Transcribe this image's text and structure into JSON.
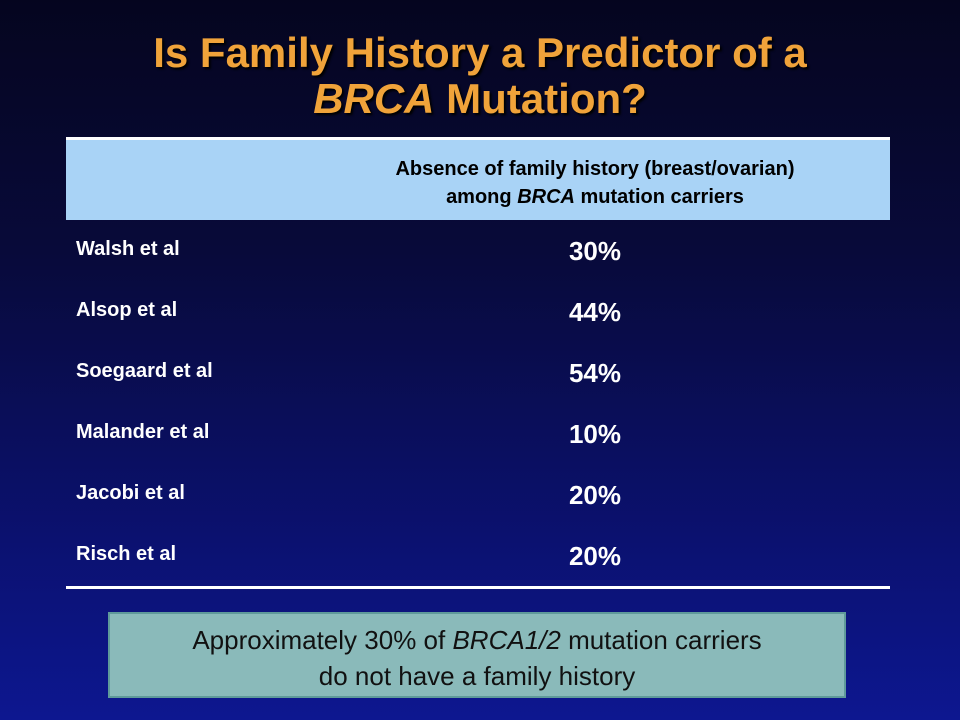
{
  "title": {
    "line1": "Is Family History a Predictor of a",
    "line2_italic": "BRCA",
    "line2_rest": " Mutation?"
  },
  "table": {
    "header": {
      "line1": "Absence of family history (breast/ovarian)",
      "line2_prefix": "among ",
      "line2_italic": "BRCA",
      "line2_suffix": " mutation carriers"
    },
    "rows": [
      {
        "study": "Walsh et al",
        "value": "30%"
      },
      {
        "study": "Alsop et al",
        "value": "44%"
      },
      {
        "study": "Soegaard et al",
        "value": "54%"
      },
      {
        "study": "Malander et al",
        "value": "10%"
      },
      {
        "study": "Jacobi et al",
        "value": "20%"
      },
      {
        "study": "Risch et al",
        "value": "20%"
      }
    ]
  },
  "callout": {
    "line1_prefix": "Approximately 30% of ",
    "line1_italic": "BRCA1/2",
    "line1_suffix": " mutation carriers",
    "line2": "do not have a family history"
  },
  "colors": {
    "title": "#f0a33a",
    "header_bg": "#a9d3f6",
    "callout_bg": "#8ababa",
    "background": "#0b1170"
  }
}
